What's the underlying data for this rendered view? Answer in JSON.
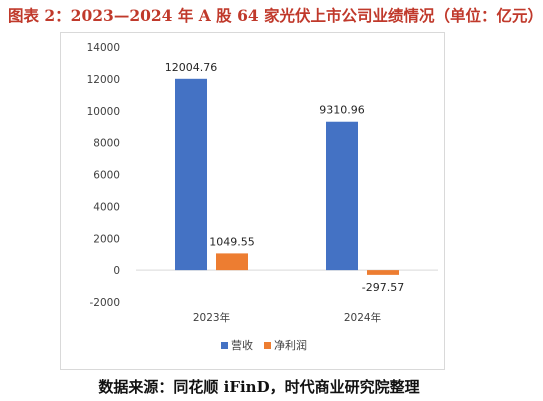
{
  "title": "图表 2：2023—2024 年 A 股 64 家光伏上市公司业绩情况（单位：亿元）",
  "source": "数据来源：同花顺 iFinD，时代商业研究院整理",
  "chart_data": {
    "type": "bar",
    "categories": [
      "2023年",
      "2024年"
    ],
    "series": [
      {
        "name": "营收",
        "values": [
          12004.76,
          9310.96
        ],
        "color": "#4472c4"
      },
      {
        "name": "净利润",
        "values": [
          1049.55,
          -297.57
        ],
        "color": "#ed7d31"
      }
    ],
    "data_labels": [
      [
        "12004.76",
        "9310.96"
      ],
      [
        "1049.55",
        "-297.57"
      ]
    ],
    "ylim": [
      -2000,
      14000
    ],
    "yticks": [
      -2000,
      0,
      2000,
      4000,
      6000,
      8000,
      10000,
      12000,
      14000
    ],
    "legend_position": "bottom",
    "grid": false
  }
}
